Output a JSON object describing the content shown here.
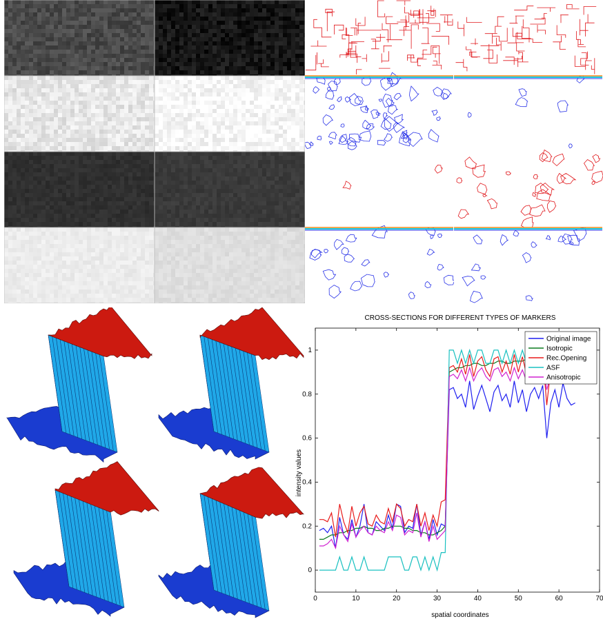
{
  "figure": {
    "gray_panels": [
      {
        "name": "noisy-dark-a",
        "tone": "#4a4a4a"
      },
      {
        "name": "noisy-dark-b",
        "tone": "#161616"
      },
      {
        "name": "noisy-light-a",
        "tone": "#e6e6e6"
      },
      {
        "name": "noisy-light-b",
        "tone": "#f7f7f7"
      },
      {
        "name": "smooth-dark-a",
        "tone": "#303030"
      },
      {
        "name": "smooth-dark-b",
        "tone": "#3a3a3a"
      },
      {
        "name": "smooth-light-a",
        "tone": "#ececec"
      },
      {
        "name": "smooth-light-b",
        "tone": "#dedede"
      }
    ],
    "contour_colors": {
      "red": "#e0161a",
      "blue": "#2a34e8",
      "cyan": "#18c8e0",
      "orange": "#f08a18"
    },
    "surface_colors": {
      "high": "#cc1a10",
      "low": "#1a3cd0",
      "wall": "#20a8e8"
    }
  },
  "chart_data": {
    "type": "line",
    "title": "CROSS-SECTIONS FOR DIFFERENT TYPES OF MARKERS",
    "xlabel": "spatial coordinates",
    "ylabel": "intensity values",
    "xlim": [
      0,
      70
    ],
    "ylim": [
      -0.1,
      1.1
    ],
    "xticks": [
      "0",
      "10",
      "20",
      "30",
      "40",
      "50",
      "60",
      "70"
    ],
    "yticks": [
      "0",
      "0.2",
      "0.4",
      "0.6",
      "0.8",
      "1"
    ],
    "grid": false,
    "legend_position": "top-right",
    "x": [
      1,
      2,
      3,
      4,
      5,
      6,
      7,
      8,
      9,
      10,
      11,
      12,
      13,
      14,
      15,
      16,
      17,
      18,
      19,
      20,
      21,
      22,
      23,
      24,
      25,
      26,
      27,
      28,
      29,
      30,
      31,
      32,
      33,
      34,
      35,
      36,
      37,
      38,
      39,
      40,
      41,
      42,
      43,
      44,
      45,
      46,
      47,
      48,
      49,
      50,
      51,
      52,
      53,
      54,
      55,
      56,
      57,
      58,
      59,
      60,
      61,
      62,
      63,
      64
    ],
    "series": [
      {
        "name": "Original image",
        "color": "#1e1ef0",
        "values": [
          0.18,
          0.19,
          0.17,
          0.2,
          0.1,
          0.24,
          0.16,
          0.14,
          0.23,
          0.15,
          0.2,
          0.3,
          0.17,
          0.16,
          0.22,
          0.2,
          0.18,
          0.25,
          0.19,
          0.3,
          0.29,
          0.17,
          0.2,
          0.19,
          0.3,
          0.16,
          0.22,
          0.14,
          0.23,
          0.16,
          0.21,
          0.2,
          0.82,
          0.83,
          0.78,
          0.8,
          0.74,
          0.86,
          0.73,
          0.79,
          0.84,
          0.78,
          0.72,
          0.81,
          0.84,
          0.77,
          0.8,
          0.74,
          0.86,
          0.76,
          0.82,
          0.72,
          0.8,
          0.83,
          0.78,
          0.84,
          0.6,
          0.76,
          0.82,
          0.74,
          0.85,
          0.78,
          0.75,
          0.76
        ]
      },
      {
        "name": "Isotropic",
        "color": "#0a7a1e",
        "values": [
          0.14,
          0.14,
          0.15,
          0.16,
          0.16,
          0.17,
          0.17,
          0.18,
          0.18,
          0.19,
          0.19,
          0.2,
          0.19,
          0.19,
          0.18,
          0.18,
          0.19,
          0.19,
          0.2,
          0.2,
          0.2,
          0.19,
          0.19,
          0.18,
          0.18,
          0.17,
          0.17,
          0.16,
          0.16,
          0.17,
          0.18,
          0.2,
          0.9,
          0.91,
          0.92,
          0.92,
          0.93,
          0.93,
          0.94,
          0.94,
          0.93,
          0.93,
          0.94,
          0.94,
          0.95,
          0.95,
          0.94,
          0.94,
          0.95,
          0.95,
          0.95,
          0.96,
          0.95,
          0.95,
          0.96,
          0.96,
          0.9,
          0.95,
          0.96,
          0.96,
          0.97,
          0.97,
          0.96,
          0.96
        ]
      },
      {
        "name": "Rec.Opening",
        "color": "#e81a1a",
        "values": [
          0.23,
          0.23,
          0.22,
          0.26,
          0.15,
          0.3,
          0.22,
          0.17,
          0.29,
          0.2,
          0.26,
          0.29,
          0.21,
          0.2,
          0.25,
          0.22,
          0.21,
          0.28,
          0.22,
          0.3,
          0.28,
          0.2,
          0.23,
          0.22,
          0.3,
          0.2,
          0.26,
          0.18,
          0.25,
          0.2,
          0.31,
          0.32,
          0.92,
          0.93,
          0.9,
          0.96,
          0.89,
          0.98,
          0.88,
          0.95,
          0.97,
          0.91,
          0.88,
          0.96,
          0.97,
          0.9,
          0.95,
          0.89,
          0.98,
          0.9,
          0.97,
          0.89,
          0.95,
          0.97,
          0.92,
          0.98,
          0.75,
          0.92,
          0.96,
          0.9,
          0.98,
          0.93,
          0.9,
          0.92
        ]
      },
      {
        "name": "ASF",
        "color": "#18c0c0",
        "values": [
          0,
          0,
          0,
          0,
          0,
          0.06,
          0,
          0,
          0.06,
          0,
          0,
          0.06,
          0,
          0,
          0,
          0,
          0,
          0.06,
          0.06,
          0.06,
          0.06,
          0,
          0,
          0.06,
          0.06,
          0,
          0.06,
          0,
          0.06,
          0,
          0.08,
          0.08,
          1,
          1,
          0.94,
          1,
          0.94,
          1,
          0.94,
          1,
          1,
          0.94,
          0.94,
          1,
          1,
          0.94,
          1,
          0.94,
          1,
          0.94,
          1,
          0.94,
          1,
          1,
          0.94,
          1,
          0.94,
          1,
          1,
          0.94,
          1,
          1,
          0.94,
          1
        ]
      },
      {
        "name": "Anisotropic",
        "color": "#d020d0",
        "values": [
          0.11,
          0.11,
          0.12,
          0.14,
          0.1,
          0.2,
          0.16,
          0.13,
          0.21,
          0.15,
          0.18,
          0.2,
          0.17,
          0.16,
          0.2,
          0.18,
          0.17,
          0.22,
          0.18,
          0.25,
          0.24,
          0.16,
          0.18,
          0.17,
          0.26,
          0.15,
          0.22,
          0.13,
          0.2,
          0.14,
          0.16,
          0.18,
          0.88,
          0.89,
          0.87,
          0.91,
          0.86,
          0.92,
          0.86,
          0.9,
          0.92,
          0.88,
          0.86,
          0.91,
          0.92,
          0.88,
          0.9,
          0.86,
          0.92,
          0.87,
          0.91,
          0.86,
          0.9,
          0.92,
          0.88,
          0.93,
          0.82,
          0.89,
          0.91,
          0.87,
          0.93,
          0.89,
          0.87,
          0.88
        ]
      }
    ]
  }
}
